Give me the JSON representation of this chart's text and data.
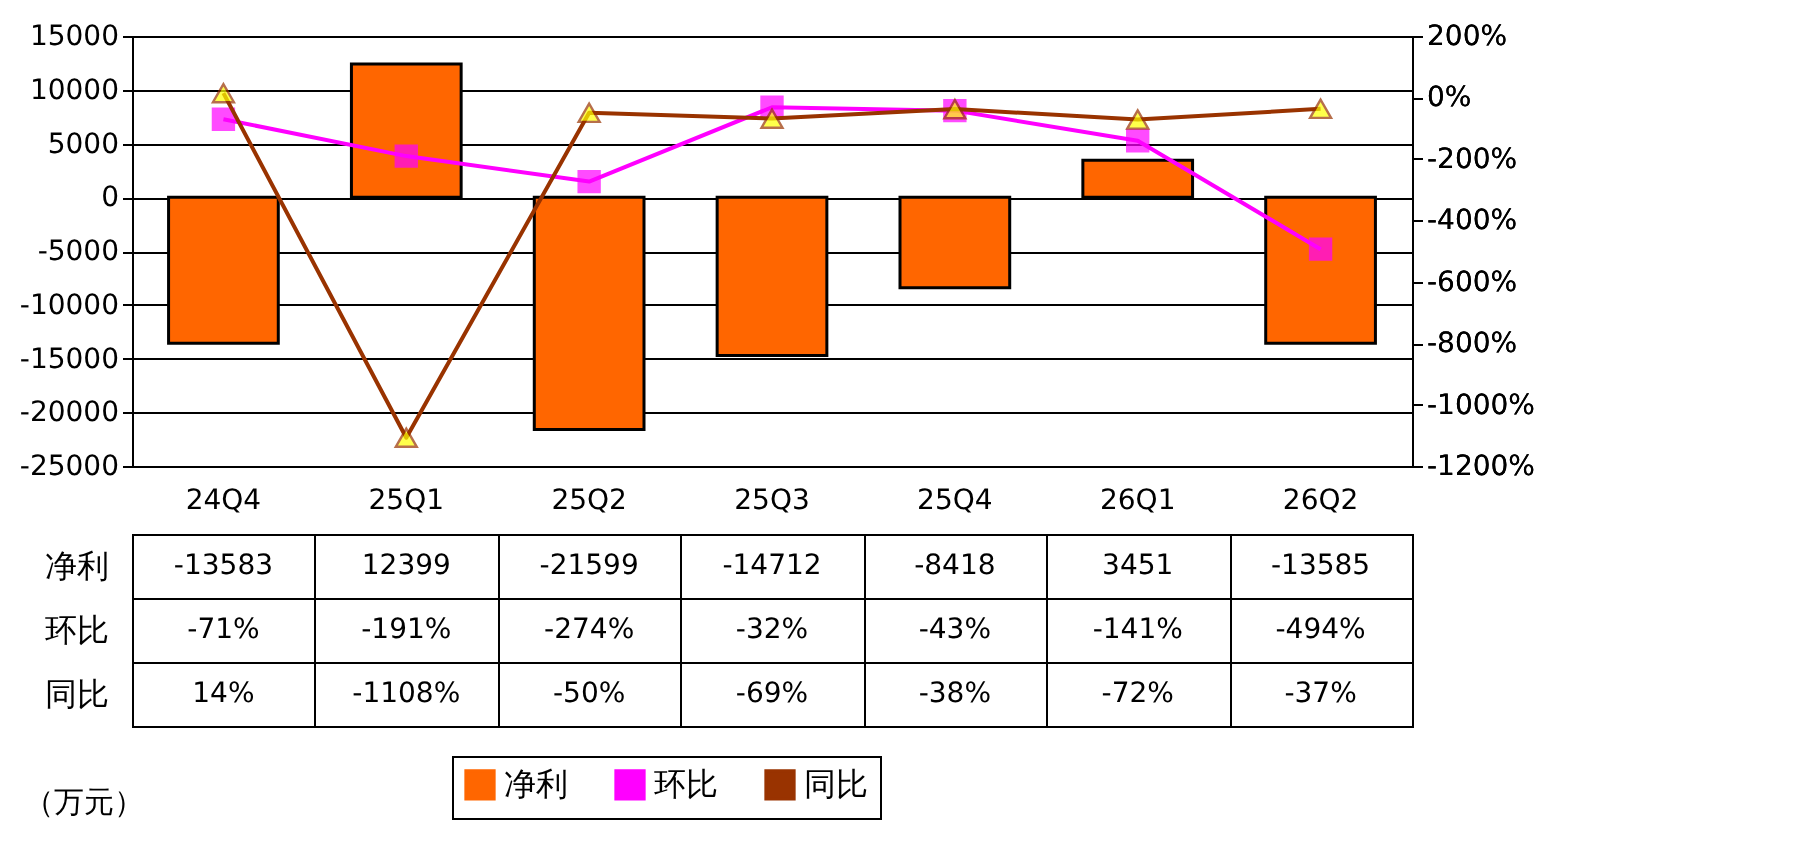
{
  "chart_data": {
    "type": "bar",
    "categories": [
      "24Q4",
      "25Q1",
      "25Q2",
      "25Q3",
      "25Q4",
      "26Q1",
      "26Q2"
    ],
    "series": [
      {
        "name": "净利",
        "color": "#ff6600",
        "values": [
          -13583,
          12399,
          -21599,
          -14712,
          -8418,
          3451,
          -13585
        ],
        "value_labels": [
          "-13583",
          "12399",
          "-21599",
          "-14712",
          "-8418",
          "3451",
          "-13585"
        ]
      },
      {
        "name": "环比",
        "type": "line",
        "axis": "y2",
        "color": "#ff00ff",
        "marker": "square",
        "values": [
          -71,
          -191,
          -274,
          -32,
          -43,
          -141,
          -494
        ],
        "value_labels": [
          "-71%",
          "-191%",
          "-274%",
          "-32%",
          "-43%",
          "-141%",
          "-494%"
        ]
      },
      {
        "name": "同比",
        "type": "line",
        "axis": "y2",
        "color": "#993300",
        "marker": "triangle",
        "values": [
          14,
          -1108,
          -50,
          -69,
          -38,
          -72,
          -37
        ],
        "value_labels": [
          "14%",
          "-1108%",
          "-50%",
          "-69%",
          "-38%",
          "-72%",
          "-37%"
        ]
      }
    ],
    "ylim": [
      -25000,
      15000
    ],
    "yticks": [
      -25000,
      -20000,
      -15000,
      -10000,
      -5000,
      0,
      5000,
      10000,
      15000
    ],
    "y2lim": [
      -1200,
      200
    ],
    "y2ticks": [
      {
        "value": -1200,
        "label": "-1200%"
      },
      {
        "value": -1000,
        "label": "-1000%"
      },
      {
        "value": -800,
        "label": "-800%"
      },
      {
        "value": -600,
        "label": "-600%"
      },
      {
        "value": -400,
        "label": "-400%"
      },
      {
        "value": -200,
        "label": "-200%"
      },
      {
        "value": 0,
        "label": "0%"
      },
      {
        "value": 200,
        "label": "200%"
      }
    ],
    "grid": "y",
    "legend": "bottom",
    "line_style": "solid",
    "annotations": [
      "（万元）"
    ]
  }
}
